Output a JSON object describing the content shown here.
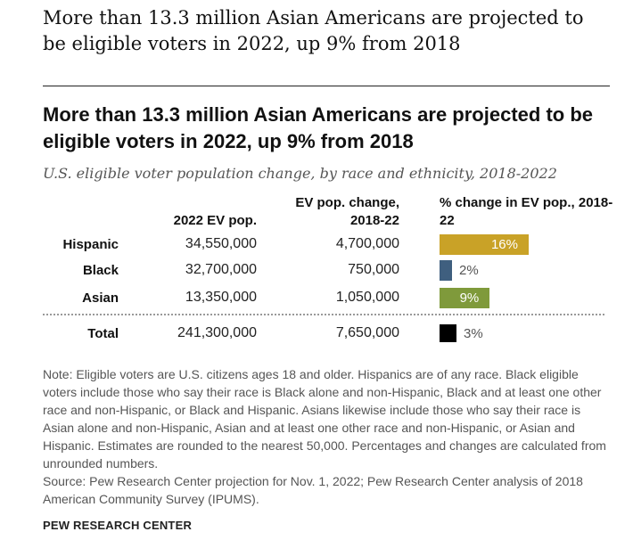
{
  "page_headline": "More than 13.3 million Asian Americans are projected to be eligible voters in 2022, up 9% from 2018",
  "chart_data": {
    "type": "table",
    "title": "More than 13.3 million Asian Americans are projected to be eligible voters in 2022, up 9% from 2018",
    "subtitle": "U.S. eligible voter population change, by race and ethnicity, 2018-2022",
    "columns": [
      "2022 EV pop.",
      "EV pop. change, 2018-22",
      "% change in EV pop., 2018-22"
    ],
    "rows": [
      {
        "label": "Hispanic",
        "ev_pop": "34,550,000",
        "change": "4,700,000",
        "pct": 16,
        "pct_label": "16%",
        "color": "#c9a227"
      },
      {
        "label": "Black",
        "ev_pop": "32,700,000",
        "change": "750,000",
        "pct": 2,
        "pct_label": "2%",
        "color": "#3f5f7f"
      },
      {
        "label": "Asian",
        "ev_pop": "13,350,000",
        "change": "1,050,000",
        "pct": 9,
        "pct_label": "9%",
        "color": "#7f9a3b"
      }
    ],
    "total": {
      "label": "Total",
      "ev_pop": "241,300,000",
      "change": "7,650,000",
      "pct": 3,
      "pct_label": "3%",
      "color": "#000000"
    }
  },
  "note": "Note: Eligible voters are U.S. citizens ages 18 and older. Hispanics are of any race. Black eligible voters include those who say their race is Black alone and non-Hispanic, Black and at least one other race and non-Hispanic, or Black and Hispanic. Asians likewise include those who say their race is Asian alone and non-Hispanic, Asian and at least one other race and non-Hispanic, or Asian and Hispanic. Estimates are rounded to the nearest 50,000. Percentages and changes are calculated from unrounded numbers.",
  "source": "Source: Pew Research Center projection for Nov. 1, 2022; Pew Research Center analysis of 2018 American Community Survey (IPUMS).",
  "brand": "PEW RESEARCH CENTER"
}
